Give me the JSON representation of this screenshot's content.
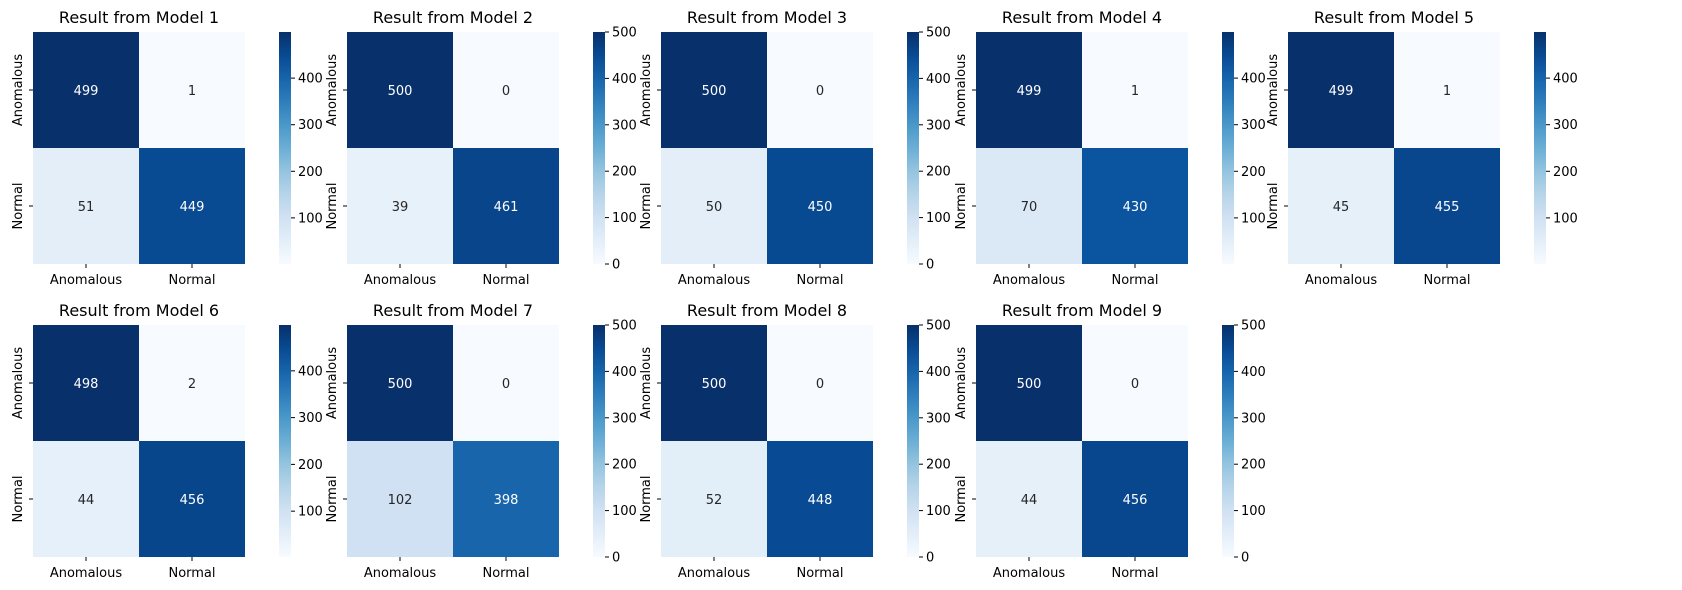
{
  "chart_data": [
    {
      "type": "heatmap",
      "title": "Result from Model 1",
      "x_categories": [
        "Anomalous",
        "Normal"
      ],
      "y_categories": [
        "Anomalous",
        "Normal"
      ],
      "values": [
        [
          499,
          1
        ],
        [
          51,
          449
        ]
      ],
      "colorbar_ticks": [
        100,
        200,
        300,
        400
      ],
      "vmin": 1,
      "vmax": 499,
      "colormap": "Blues"
    },
    {
      "type": "heatmap",
      "title": "Result from Model 2",
      "x_categories": [
        "Anomalous",
        "Normal"
      ],
      "y_categories": [
        "Anomalous",
        "Normal"
      ],
      "values": [
        [
          500,
          0
        ],
        [
          39,
          461
        ]
      ],
      "colorbar_ticks": [
        0,
        100,
        200,
        300,
        400,
        500
      ],
      "vmin": 0,
      "vmax": 500,
      "colormap": "Blues"
    },
    {
      "type": "heatmap",
      "title": "Result from Model 3",
      "x_categories": [
        "Anomalous",
        "Normal"
      ],
      "y_categories": [
        "Anomalous",
        "Normal"
      ],
      "values": [
        [
          500,
          0
        ],
        [
          50,
          450
        ]
      ],
      "colorbar_ticks": [
        0,
        100,
        200,
        300,
        400,
        500
      ],
      "vmin": 0,
      "vmax": 500,
      "colormap": "Blues"
    },
    {
      "type": "heatmap",
      "title": "Result from Model 4",
      "x_categories": [
        "Anomalous",
        "Normal"
      ],
      "y_categories": [
        "Anomalous",
        "Normal"
      ],
      "values": [
        [
          499,
          1
        ],
        [
          70,
          430
        ]
      ],
      "colorbar_ticks": [
        100,
        200,
        300,
        400
      ],
      "vmin": 1,
      "vmax": 499,
      "colormap": "Blues"
    },
    {
      "type": "heatmap",
      "title": "Result from Model 5",
      "x_categories": [
        "Anomalous",
        "Normal"
      ],
      "y_categories": [
        "Anomalous",
        "Normal"
      ],
      "values": [
        [
          499,
          1
        ],
        [
          45,
          455
        ]
      ],
      "colorbar_ticks": [
        100,
        200,
        300,
        400
      ],
      "vmin": 1,
      "vmax": 499,
      "colormap": "Blues"
    },
    {
      "type": "heatmap",
      "title": "Result from Model 6",
      "x_categories": [
        "Anomalous",
        "Normal"
      ],
      "y_categories": [
        "Anomalous",
        "Normal"
      ],
      "values": [
        [
          498,
          2
        ],
        [
          44,
          456
        ]
      ],
      "colorbar_ticks": [
        100,
        200,
        300,
        400
      ],
      "vmin": 2,
      "vmax": 498,
      "colormap": "Blues"
    },
    {
      "type": "heatmap",
      "title": "Result from Model 7",
      "x_categories": [
        "Anomalous",
        "Normal"
      ],
      "y_categories": [
        "Anomalous",
        "Normal"
      ],
      "values": [
        [
          500,
          0
        ],
        [
          102,
          398
        ]
      ],
      "colorbar_ticks": [
        0,
        100,
        200,
        300,
        400,
        500
      ],
      "vmin": 0,
      "vmax": 500,
      "colormap": "Blues"
    },
    {
      "type": "heatmap",
      "title": "Result from Model 8",
      "x_categories": [
        "Anomalous",
        "Normal"
      ],
      "y_categories": [
        "Anomalous",
        "Normal"
      ],
      "values": [
        [
          500,
          0
        ],
        [
          52,
          448
        ]
      ],
      "colorbar_ticks": [
        0,
        100,
        200,
        300,
        400,
        500
      ],
      "vmin": 0,
      "vmax": 500,
      "colormap": "Blues"
    },
    {
      "type": "heatmap",
      "title": "Result from Model 9",
      "x_categories": [
        "Anomalous",
        "Normal"
      ],
      "y_categories": [
        "Anomalous",
        "Normal"
      ],
      "values": [
        [
          500,
          0
        ],
        [
          44,
          456
        ]
      ],
      "colorbar_ticks": [
        0,
        100,
        200,
        300,
        400,
        500
      ],
      "vmin": 0,
      "vmax": 500,
      "colormap": "Blues"
    }
  ]
}
